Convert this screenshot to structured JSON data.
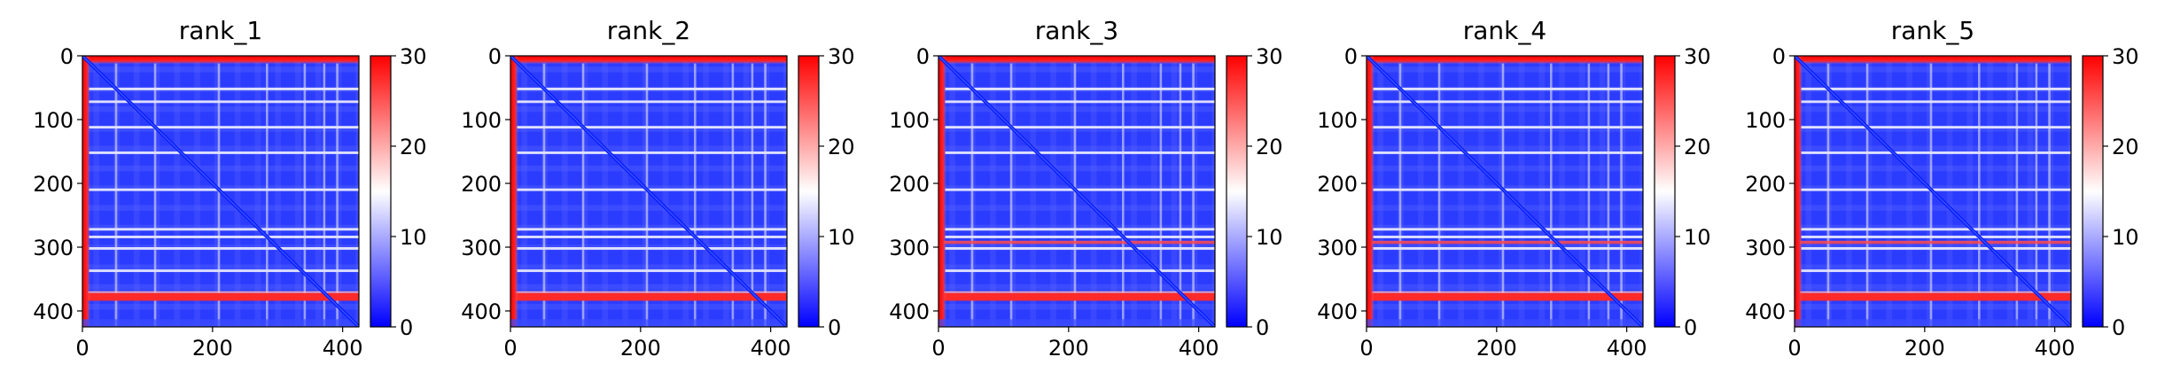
{
  "chart_data": [
    {
      "type": "heatmap",
      "title": "rank_1",
      "x_ticks": [
        "0",
        "200",
        "400"
      ],
      "y_ticks": [
        "0",
        "100",
        "200",
        "300",
        "400"
      ],
      "xlim": [
        0,
        425
      ],
      "ylim": [
        425,
        0
      ],
      "colorbar": {
        "ticks": [
          "0",
          "10",
          "20",
          "30"
        ],
        "range": [
          0,
          30
        ],
        "colormap": "bwr"
      },
      "matrix_size": 425,
      "low_band_rows": [],
      "high_band_row": 378
    },
    {
      "type": "heatmap",
      "title": "rank_2",
      "x_ticks": [
        "0",
        "200",
        "400"
      ],
      "y_ticks": [
        "0",
        "100",
        "200",
        "300",
        "400"
      ],
      "xlim": [
        0,
        425
      ],
      "ylim": [
        425,
        0
      ],
      "colorbar": {
        "ticks": [
          "0",
          "10",
          "20",
          "30"
        ],
        "range": [
          0,
          30
        ],
        "colormap": "bwr"
      },
      "matrix_size": 425,
      "low_band_rows": [],
      "high_band_row": 378
    },
    {
      "type": "heatmap",
      "title": "rank_3",
      "x_ticks": [
        "0",
        "200",
        "400"
      ],
      "y_ticks": [
        "0",
        "100",
        "200",
        "300",
        "400"
      ],
      "xlim": [
        0,
        425
      ],
      "ylim": [
        425,
        0
      ],
      "colorbar": {
        "ticks": [
          "0",
          "10",
          "20",
          "30"
        ],
        "range": [
          0,
          30
        ],
        "colormap": "bwr"
      },
      "matrix_size": 425,
      "low_band_rows": [
        292
      ],
      "high_band_row": 378
    },
    {
      "type": "heatmap",
      "title": "rank_4",
      "x_ticks": [
        "0",
        "200",
        "400"
      ],
      "y_ticks": [
        "0",
        "100",
        "200",
        "300",
        "400"
      ],
      "xlim": [
        0,
        425
      ],
      "ylim": [
        425,
        0
      ],
      "colorbar": {
        "ticks": [
          "0",
          "10",
          "20",
          "30"
        ],
        "range": [
          0,
          30
        ],
        "colormap": "bwr"
      },
      "matrix_size": 425,
      "low_band_rows": [
        292
      ],
      "high_band_row": 378
    },
    {
      "type": "heatmap",
      "title": "rank_5",
      "x_ticks": [
        "0",
        "200",
        "400"
      ],
      "y_ticks": [
        "0",
        "100",
        "200",
        "300",
        "400"
      ],
      "xlim": [
        0,
        425
      ],
      "ylim": [
        425,
        0
      ],
      "colorbar": {
        "ticks": [
          "0",
          "10",
          "20",
          "30"
        ],
        "range": [
          0,
          30
        ],
        "colormap": "bwr"
      },
      "matrix_size": 425,
      "low_band_rows": [
        292
      ],
      "high_band_row": 378
    }
  ],
  "colors": {
    "low": "#0000ff",
    "mid": "#ffffff",
    "high": "#ff0000"
  }
}
